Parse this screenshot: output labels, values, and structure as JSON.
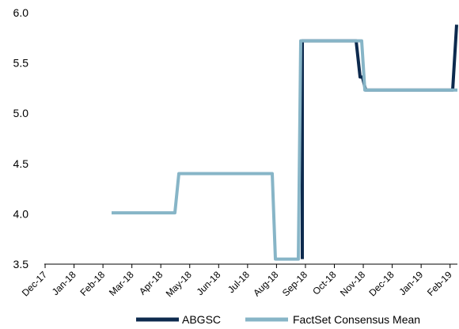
{
  "chart_data": {
    "type": "line",
    "title": "",
    "xlabel": "",
    "ylabel": "",
    "ylim": [
      3.5,
      6.0
    ],
    "yticks": [
      "3.5",
      "4.0",
      "4.5",
      "5.0",
      "5.5",
      "6.0"
    ],
    "categories": [
      "Dec-17",
      "Jan-18",
      "Feb-18",
      "Mar-18",
      "Apr-18",
      "May-18",
      "Jun-18",
      "Jul-18",
      "Aug-18",
      "Sep-18",
      "Oct-18",
      "Nov-18",
      "Dec-18",
      "Jan-19",
      "Feb-19"
    ],
    "grid": false,
    "legend_position": "bottom",
    "series": [
      {
        "name": "ABGSC",
        "color": "#0d2a4e",
        "points": [
          [
            "Sep-18",
            3.55
          ],
          [
            "Sep-18",
            5.72
          ],
          [
            "Nov-18",
            5.72
          ],
          [
            "Nov-18",
            5.36
          ],
          [
            "Nov-18",
            5.36
          ],
          [
            "Nov-18",
            5.23
          ],
          [
            "Feb-19",
            5.23
          ],
          [
            "Feb-19",
            5.88
          ]
        ]
      },
      {
        "name": "FactSet Consensus Mean",
        "color": "#87b5c7",
        "points": [
          [
            "Mar-18",
            4.01
          ],
          [
            "Apr-18",
            4.01
          ],
          [
            "May-18",
            4.4
          ],
          [
            "Aug-18",
            4.4
          ],
          [
            "Aug-18",
            3.55
          ],
          [
            "Sep-18",
            3.55
          ],
          [
            "Sep-18",
            5.72
          ],
          [
            "Nov-18",
            5.72
          ],
          [
            "Nov-18",
            5.23
          ],
          [
            "Feb-19",
            5.23
          ]
        ]
      }
    ]
  }
}
